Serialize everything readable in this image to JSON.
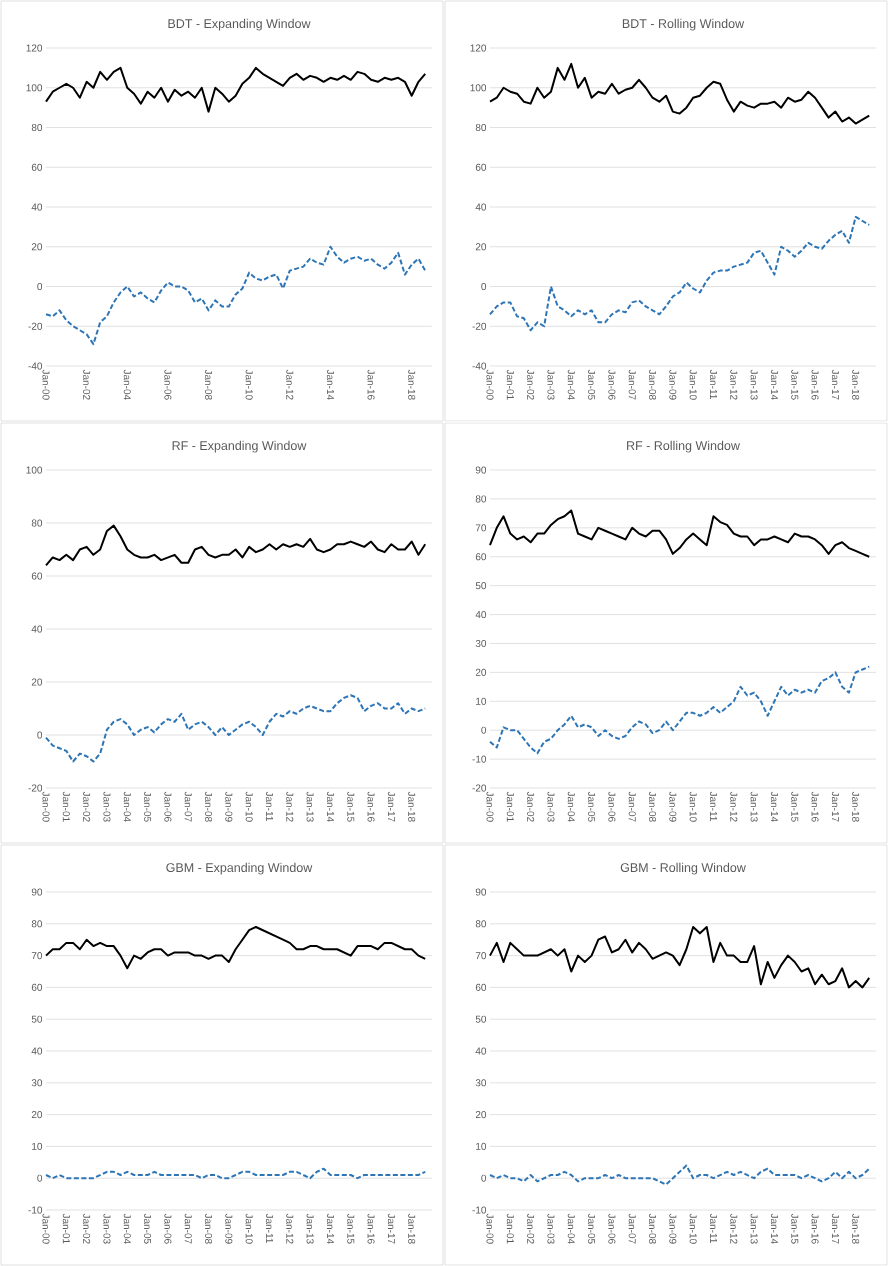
{
  "chart_data": [
    {
      "type": "line",
      "title": "BDT - Expanding Window",
      "grid": "y",
      "x": [
        "2000-01",
        "2000-05",
        "2000-09",
        "2001-01",
        "2001-05",
        "2001-09",
        "2002-01",
        "2002-05",
        "2002-09",
        "2003-01",
        "2003-05",
        "2003-09",
        "2004-01",
        "2004-05",
        "2004-09",
        "2005-01",
        "2005-05",
        "2005-09",
        "2006-01",
        "2006-05",
        "2006-09",
        "2007-01",
        "2007-05",
        "2007-09",
        "2008-01",
        "2008-05",
        "2008-09",
        "2009-01",
        "2009-05",
        "2009-09",
        "2010-01",
        "2010-05",
        "2010-09",
        "2011-01",
        "2011-05",
        "2011-09",
        "2012-01",
        "2012-05",
        "2012-09",
        "2013-01",
        "2013-05",
        "2013-09",
        "2014-01",
        "2014-05",
        "2014-09",
        "2015-01",
        "2015-05",
        "2015-09",
        "2016-01",
        "2016-05",
        "2016-09",
        "2017-01",
        "2017-05",
        "2017-09",
        "2018-01",
        "2018-05",
        "2018-09"
      ],
      "xlim": [
        "2000-01",
        "2019-01"
      ],
      "xticks": [
        {
          "value": "2000-01",
          "label": "Jan-00"
        },
        {
          "value": "2002-01",
          "label": "Jan-02"
        },
        {
          "value": "2004-01",
          "label": "Jan-04"
        },
        {
          "value": "2006-01",
          "label": "Jan-06"
        },
        {
          "value": "2008-01",
          "label": "Jan-08"
        },
        {
          "value": "2010-01",
          "label": "Jan-10"
        },
        {
          "value": "2012-01",
          "label": "Jan-12"
        },
        {
          "value": "2014-01",
          "label": "Jan-14"
        },
        {
          "value": "2016-01",
          "label": "Jan-16"
        },
        {
          "value": "2018-01",
          "label": "Jan-18"
        }
      ],
      "ylim": [
        -40,
        120
      ],
      "yticks": [
        -40,
        -20,
        0,
        20,
        40,
        60,
        80,
        100,
        120
      ],
      "series": [
        {
          "color": "#000000",
          "line_style": "solid",
          "values": [
            93,
            98,
            100,
            102,
            100,
            95,
            103,
            100,
            108,
            104,
            108,
            110,
            100,
            97,
            92,
            98,
            95,
            100,
            93,
            99,
            96,
            98,
            95,
            100,
            88,
            100,
            97,
            93,
            96,
            102,
            105,
            110,
            107,
            105,
            103,
            101,
            105,
            107,
            104,
            106,
            105,
            103,
            105,
            104,
            106,
            104,
            108,
            107,
            104,
            103,
            105,
            104,
            105,
            103,
            96,
            103,
            107
          ]
        },
        {
          "color": "#2e75b6",
          "line_style": "dashed",
          "values": [
            -14,
            -15,
            -12,
            -17,
            -20,
            -22,
            -24,
            -29,
            -18,
            -15,
            -8,
            -3,
            0,
            -5,
            -3,
            -6,
            -8,
            -2,
            2,
            0,
            0,
            -2,
            -8,
            -6,
            -12,
            -7,
            -10,
            -10,
            -4,
            -1,
            7,
            4,
            3,
            5,
            6,
            -1,
            8,
            9,
            10,
            14,
            12,
            11,
            20,
            15,
            12,
            14,
            15,
            13,
            14,
            11,
            9,
            12,
            17,
            6,
            11,
            14,
            8
          ]
        }
      ]
    },
    {
      "type": "line",
      "title": "BDT - Rolling Window",
      "grid": "y",
      "x": [
        "2000-01",
        "2000-05",
        "2000-09",
        "2001-01",
        "2001-05",
        "2001-09",
        "2002-01",
        "2002-05",
        "2002-09",
        "2003-01",
        "2003-05",
        "2003-09",
        "2004-01",
        "2004-05",
        "2004-09",
        "2005-01",
        "2005-05",
        "2005-09",
        "2006-01",
        "2006-05",
        "2006-09",
        "2007-01",
        "2007-05",
        "2007-09",
        "2008-01",
        "2008-05",
        "2008-09",
        "2009-01",
        "2009-05",
        "2009-09",
        "2010-01",
        "2010-05",
        "2010-09",
        "2011-01",
        "2011-05",
        "2011-09",
        "2012-01",
        "2012-05",
        "2012-09",
        "2013-01",
        "2013-05",
        "2013-09",
        "2014-01",
        "2014-05",
        "2014-09",
        "2015-01",
        "2015-05",
        "2015-09",
        "2016-01",
        "2016-05",
        "2016-09",
        "2017-01",
        "2017-05",
        "2017-09",
        "2018-01",
        "2018-05",
        "2018-09"
      ],
      "xlim": [
        "2000-01",
        "2019-01"
      ],
      "xticks": [
        {
          "value": "2000-01",
          "label": "Jan-00"
        },
        {
          "value": "2001-01",
          "label": "Jan-01"
        },
        {
          "value": "2002-01",
          "label": "Jan-02"
        },
        {
          "value": "2003-01",
          "label": "Jan-03"
        },
        {
          "value": "2004-01",
          "label": "Jan-04"
        },
        {
          "value": "2005-01",
          "label": "Jan-05"
        },
        {
          "value": "2006-01",
          "label": "Jan-06"
        },
        {
          "value": "2007-01",
          "label": "Jan-07"
        },
        {
          "value": "2008-01",
          "label": "Jan-08"
        },
        {
          "value": "2009-01",
          "label": "Jan-09"
        },
        {
          "value": "2010-01",
          "label": "Jan-10"
        },
        {
          "value": "2011-01",
          "label": "Jan-11"
        },
        {
          "value": "2012-01",
          "label": "Jan-12"
        },
        {
          "value": "2013-01",
          "label": "Jan-13"
        },
        {
          "value": "2014-01",
          "label": "Jan-14"
        },
        {
          "value": "2015-01",
          "label": "Jan-15"
        },
        {
          "value": "2016-01",
          "label": "Jan-16"
        },
        {
          "value": "2017-01",
          "label": "Jan-17"
        },
        {
          "value": "2018-01",
          "label": "Jan-18"
        }
      ],
      "ylim": [
        -40,
        120
      ],
      "yticks": [
        -40,
        -20,
        0,
        20,
        40,
        60,
        80,
        100,
        120
      ],
      "series": [
        {
          "color": "#000000",
          "line_style": "solid",
          "values": [
            93,
            95,
            100,
            98,
            97,
            93,
            92,
            100,
            95,
            98,
            110,
            104,
            112,
            100,
            105,
            95,
            98,
            97,
            102,
            97,
            99,
            100,
            104,
            100,
            95,
            93,
            96,
            88,
            87,
            90,
            95,
            96,
            100,
            103,
            102,
            94,
            88,
            93,
            91,
            90,
            92,
            92,
            93,
            90,
            95,
            93,
            94,
            98,
            95,
            90,
            85,
            88,
            83,
            85,
            82,
            84,
            86
          ]
        },
        {
          "color": "#2e75b6",
          "line_style": "dashed",
          "values": [
            -14,
            -10,
            -8,
            -8,
            -15,
            -16,
            -22,
            -18,
            -20,
            0,
            -10,
            -12,
            -15,
            -12,
            -14,
            -12,
            -18,
            -18,
            -14,
            -12,
            -13,
            -8,
            -7,
            -10,
            -12,
            -14,
            -10,
            -5,
            -3,
            2,
            -1,
            -3,
            3,
            7,
            8,
            8,
            10,
            11,
            12,
            17,
            18,
            12,
            6,
            20,
            18,
            15,
            18,
            22,
            20,
            19,
            23,
            26,
            28,
            22,
            35,
            33,
            31
          ]
        }
      ]
    },
    {
      "type": "line",
      "title": "RF - Expanding Window",
      "grid": "y",
      "x": [
        "2000-01",
        "2000-05",
        "2000-09",
        "2001-01",
        "2001-05",
        "2001-09",
        "2002-01",
        "2002-05",
        "2002-09",
        "2003-01",
        "2003-05",
        "2003-09",
        "2004-01",
        "2004-05",
        "2004-09",
        "2005-01",
        "2005-05",
        "2005-09",
        "2006-01",
        "2006-05",
        "2006-09",
        "2007-01",
        "2007-05",
        "2007-09",
        "2008-01",
        "2008-05",
        "2008-09",
        "2009-01",
        "2009-05",
        "2009-09",
        "2010-01",
        "2010-05",
        "2010-09",
        "2011-01",
        "2011-05",
        "2011-09",
        "2012-01",
        "2012-05",
        "2012-09",
        "2013-01",
        "2013-05",
        "2013-09",
        "2014-01",
        "2014-05",
        "2014-09",
        "2015-01",
        "2015-05",
        "2015-09",
        "2016-01",
        "2016-05",
        "2016-09",
        "2017-01",
        "2017-05",
        "2017-09",
        "2018-01",
        "2018-05",
        "2018-09"
      ],
      "xlim": [
        "2000-01",
        "2019-01"
      ],
      "xticks": [
        {
          "value": "2000-01",
          "label": "Jan-00"
        },
        {
          "value": "2001-01",
          "label": "Jan-01"
        },
        {
          "value": "2002-01",
          "label": "Jan-02"
        },
        {
          "value": "2003-01",
          "label": "Jan-03"
        },
        {
          "value": "2004-01",
          "label": "Jan-04"
        },
        {
          "value": "2005-01",
          "label": "Jan-05"
        },
        {
          "value": "2006-01",
          "label": "Jan-06"
        },
        {
          "value": "2007-01",
          "label": "Jan-07"
        },
        {
          "value": "2008-01",
          "label": "Jan-08"
        },
        {
          "value": "2009-01",
          "label": "Jan-09"
        },
        {
          "value": "2010-01",
          "label": "Jan-10"
        },
        {
          "value": "2011-01",
          "label": "Jan-11"
        },
        {
          "value": "2012-01",
          "label": "Jan-12"
        },
        {
          "value": "2013-01",
          "label": "Jan-13"
        },
        {
          "value": "2014-01",
          "label": "Jan-14"
        },
        {
          "value": "2015-01",
          "label": "Jan-15"
        },
        {
          "value": "2016-01",
          "label": "Jan-16"
        },
        {
          "value": "2017-01",
          "label": "Jan-17"
        },
        {
          "value": "2018-01",
          "label": "Jan-18"
        }
      ],
      "ylim": [
        -20,
        100
      ],
      "yticks": [
        -20,
        0,
        20,
        40,
        60,
        80,
        100
      ],
      "series": [
        {
          "color": "#000000",
          "line_style": "solid",
          "values": [
            64,
            67,
            66,
            68,
            66,
            70,
            71,
            68,
            70,
            77,
            79,
            75,
            70,
            68,
            67,
            67,
            68,
            66,
            67,
            68,
            65,
            65,
            70,
            71,
            68,
            67,
            68,
            68,
            70,
            67,
            71,
            69,
            70,
            72,
            70,
            72,
            71,
            72,
            71,
            74,
            70,
            69,
            70,
            72,
            72,
            73,
            72,
            71,
            73,
            70,
            69,
            72,
            70,
            70,
            73,
            68,
            72
          ]
        },
        {
          "color": "#2e75b6",
          "line_style": "dashed",
          "values": [
            -1,
            -4,
            -5,
            -6,
            -10,
            -7,
            -8,
            -10,
            -7,
            2,
            5,
            6,
            4,
            0,
            2,
            3,
            1,
            4,
            6,
            5,
            8,
            2,
            4,
            5,
            3,
            0,
            3,
            0,
            2,
            4,
            5,
            3,
            0,
            5,
            8,
            7,
            9,
            8,
            10,
            11,
            10,
            9,
            9,
            12,
            14,
            15,
            14,
            9,
            11,
            12,
            10,
            10,
            12,
            8,
            10,
            9,
            10
          ]
        }
      ]
    },
    {
      "type": "line",
      "title": "RF - Rolling Window",
      "grid": "y",
      "x": [
        "2000-01",
        "2000-05",
        "2000-09",
        "2001-01",
        "2001-05",
        "2001-09",
        "2002-01",
        "2002-05",
        "2002-09",
        "2003-01",
        "2003-05",
        "2003-09",
        "2004-01",
        "2004-05",
        "2004-09",
        "2005-01",
        "2005-05",
        "2005-09",
        "2006-01",
        "2006-05",
        "2006-09",
        "2007-01",
        "2007-05",
        "2007-09",
        "2008-01",
        "2008-05",
        "2008-09",
        "2009-01",
        "2009-05",
        "2009-09",
        "2010-01",
        "2010-05",
        "2010-09",
        "2011-01",
        "2011-05",
        "2011-09",
        "2012-01",
        "2012-05",
        "2012-09",
        "2013-01",
        "2013-05",
        "2013-09",
        "2014-01",
        "2014-05",
        "2014-09",
        "2015-01",
        "2015-05",
        "2015-09",
        "2016-01",
        "2016-05",
        "2016-09",
        "2017-01",
        "2017-05",
        "2017-09",
        "2018-01",
        "2018-05",
        "2018-09"
      ],
      "xlim": [
        "2000-01",
        "2019-01"
      ],
      "xticks": [
        {
          "value": "2000-01",
          "label": "Jan-00"
        },
        {
          "value": "2001-01",
          "label": "Jan-01"
        },
        {
          "value": "2002-01",
          "label": "Jan-02"
        },
        {
          "value": "2003-01",
          "label": "Jan-03"
        },
        {
          "value": "2004-01",
          "label": "Jan-04"
        },
        {
          "value": "2005-01",
          "label": "Jan-05"
        },
        {
          "value": "2006-01",
          "label": "Jan-06"
        },
        {
          "value": "2007-01",
          "label": "Jan-07"
        },
        {
          "value": "2008-01",
          "label": "Jan-08"
        },
        {
          "value": "2009-01",
          "label": "Jan-09"
        },
        {
          "value": "2010-01",
          "label": "Jan-10"
        },
        {
          "value": "2011-01",
          "label": "Jan-11"
        },
        {
          "value": "2012-01",
          "label": "Jan-12"
        },
        {
          "value": "2013-01",
          "label": "Jan-13"
        },
        {
          "value": "2014-01",
          "label": "Jan-14"
        },
        {
          "value": "2015-01",
          "label": "Jan-15"
        },
        {
          "value": "2016-01",
          "label": "Jan-16"
        },
        {
          "value": "2017-01",
          "label": "Jan-17"
        },
        {
          "value": "2018-01",
          "label": "Jan-18"
        }
      ],
      "ylim": [
        -20,
        90
      ],
      "yticks": [
        -20,
        -10,
        0,
        10,
        20,
        30,
        40,
        50,
        60,
        70,
        80,
        90
      ],
      "series": [
        {
          "color": "#000000",
          "line_style": "solid",
          "values": [
            64,
            70,
            74,
            68,
            66,
            67,
            65,
            68,
            68,
            71,
            73,
            74,
            76,
            68,
            67,
            66,
            70,
            69,
            68,
            67,
            66,
            70,
            68,
            67,
            69,
            69,
            66,
            61,
            63,
            66,
            68,
            66,
            64,
            74,
            72,
            71,
            68,
            67,
            67,
            64,
            66,
            66,
            67,
            66,
            65,
            68,
            67,
            67,
            66,
            64,
            61,
            64,
            65,
            63,
            62,
            61,
            60
          ]
        },
        {
          "color": "#2e75b6",
          "line_style": "dashed",
          "values": [
            -4,
            -6,
            1,
            0,
            0,
            -3,
            -6,
            -8,
            -4,
            -3,
            0,
            2,
            5,
            1,
            2,
            1,
            -2,
            0,
            -2,
            -3,
            -2,
            1,
            3,
            2,
            -1,
            0,
            3,
            0,
            3,
            6,
            6,
            5,
            6,
            8,
            6,
            8,
            10,
            15,
            12,
            13,
            10,
            5,
            10,
            15,
            12,
            14,
            13,
            14,
            13,
            17,
            18,
            20,
            15,
            13,
            20,
            21,
            22
          ]
        }
      ]
    },
    {
      "type": "line",
      "title": "GBM - Expanding Window",
      "grid": "y",
      "x": [
        "2000-01",
        "2000-05",
        "2000-09",
        "2001-01",
        "2001-05",
        "2001-09",
        "2002-01",
        "2002-05",
        "2002-09",
        "2003-01",
        "2003-05",
        "2003-09",
        "2004-01",
        "2004-05",
        "2004-09",
        "2005-01",
        "2005-05",
        "2005-09",
        "2006-01",
        "2006-05",
        "2006-09",
        "2007-01",
        "2007-05",
        "2007-09",
        "2008-01",
        "2008-05",
        "2008-09",
        "2009-01",
        "2009-05",
        "2009-09",
        "2010-01",
        "2010-05",
        "2010-09",
        "2011-01",
        "2011-05",
        "2011-09",
        "2012-01",
        "2012-05",
        "2012-09",
        "2013-01",
        "2013-05",
        "2013-09",
        "2014-01",
        "2014-05",
        "2014-09",
        "2015-01",
        "2015-05",
        "2015-09",
        "2016-01",
        "2016-05",
        "2016-09",
        "2017-01",
        "2017-05",
        "2017-09",
        "2018-01",
        "2018-05",
        "2018-09"
      ],
      "xlim": [
        "2000-01",
        "2019-01"
      ],
      "xticks": [
        {
          "value": "2000-01",
          "label": "Jan-00"
        },
        {
          "value": "2001-01",
          "label": "Jan-01"
        },
        {
          "value": "2002-01",
          "label": "Jan-02"
        },
        {
          "value": "2003-01",
          "label": "Jan-03"
        },
        {
          "value": "2004-01",
          "label": "Jan-04"
        },
        {
          "value": "2005-01",
          "label": "Jan-05"
        },
        {
          "value": "2006-01",
          "label": "Jan-06"
        },
        {
          "value": "2007-01",
          "label": "Jan-07"
        },
        {
          "value": "2008-01",
          "label": "Jan-08"
        },
        {
          "value": "2009-01",
          "label": "Jan-09"
        },
        {
          "value": "2010-01",
          "label": "Jan-10"
        },
        {
          "value": "2011-01",
          "label": "Jan-11"
        },
        {
          "value": "2012-01",
          "label": "Jan-12"
        },
        {
          "value": "2013-01",
          "label": "Jan-13"
        },
        {
          "value": "2014-01",
          "label": "Jan-14"
        },
        {
          "value": "2015-01",
          "label": "Jan-15"
        },
        {
          "value": "2016-01",
          "label": "Jan-16"
        },
        {
          "value": "2017-01",
          "label": "Jan-17"
        },
        {
          "value": "2018-01",
          "label": "Jan-18"
        }
      ],
      "ylim": [
        -10,
        90
      ],
      "yticks": [
        -10,
        0,
        10,
        20,
        30,
        40,
        50,
        60,
        70,
        80,
        90
      ],
      "series": [
        {
          "color": "#000000",
          "line_style": "solid",
          "values": [
            70,
            72,
            72,
            74,
            74,
            72,
            75,
            73,
            74,
            73,
            73,
            70,
            66,
            70,
            69,
            71,
            72,
            72,
            70,
            71,
            71,
            71,
            70,
            70,
            69,
            70,
            70,
            68,
            72,
            75,
            78,
            79,
            78,
            77,
            76,
            75,
            74,
            72,
            72,
            73,
            73,
            72,
            72,
            72,
            71,
            70,
            73,
            73,
            73,
            72,
            74,
            74,
            73,
            72,
            72,
            70,
            69
          ]
        },
        {
          "color": "#2e75b6",
          "line_style": "dashed",
          "values": [
            1,
            0,
            1,
            0,
            0,
            0,
            0,
            0,
            1,
            2,
            2,
            1,
            2,
            1,
            1,
            1,
            2,
            1,
            1,
            1,
            1,
            1,
            1,
            0,
            1,
            1,
            0,
            0,
            1,
            2,
            2,
            1,
            1,
            1,
            1,
            1,
            2,
            2,
            1,
            0,
            2,
            3,
            1,
            1,
            1,
            1,
            0,
            1,
            1,
            1,
            1,
            1,
            1,
            1,
            1,
            1,
            2
          ]
        }
      ]
    },
    {
      "type": "line",
      "title": "GBM - Rolling Window",
      "grid": "y",
      "x": [
        "2000-01",
        "2000-05",
        "2000-09",
        "2001-01",
        "2001-05",
        "2001-09",
        "2002-01",
        "2002-05",
        "2002-09",
        "2003-01",
        "2003-05",
        "2003-09",
        "2004-01",
        "2004-05",
        "2004-09",
        "2005-01",
        "2005-05",
        "2005-09",
        "2006-01",
        "2006-05",
        "2006-09",
        "2007-01",
        "2007-05",
        "2007-09",
        "2008-01",
        "2008-05",
        "2008-09",
        "2009-01",
        "2009-05",
        "2009-09",
        "2010-01",
        "2010-05",
        "2010-09",
        "2011-01",
        "2011-05",
        "2011-09",
        "2012-01",
        "2012-05",
        "2012-09",
        "2013-01",
        "2013-05",
        "2013-09",
        "2014-01",
        "2014-05",
        "2014-09",
        "2015-01",
        "2015-05",
        "2015-09",
        "2016-01",
        "2016-05",
        "2016-09",
        "2017-01",
        "2017-05",
        "2017-09",
        "2018-01",
        "2018-05",
        "2018-09"
      ],
      "xlim": [
        "2000-01",
        "2019-01"
      ],
      "xticks": [
        {
          "value": "2000-01",
          "label": "Jan-00"
        },
        {
          "value": "2001-01",
          "label": "Jan-01"
        },
        {
          "value": "2002-01",
          "label": "Jan-02"
        },
        {
          "value": "2003-01",
          "label": "Jan-03"
        },
        {
          "value": "2004-01",
          "label": "Jan-04"
        },
        {
          "value": "2005-01",
          "label": "Jan-05"
        },
        {
          "value": "2006-01",
          "label": "Jan-06"
        },
        {
          "value": "2007-01",
          "label": "Jan-07"
        },
        {
          "value": "2008-01",
          "label": "Jan-08"
        },
        {
          "value": "2009-01",
          "label": "Jan-09"
        },
        {
          "value": "2010-01",
          "label": "Jan-10"
        },
        {
          "value": "2011-01",
          "label": "Jan-11"
        },
        {
          "value": "2012-01",
          "label": "Jan-12"
        },
        {
          "value": "2013-01",
          "label": "Jan-13"
        },
        {
          "value": "2014-01",
          "label": "Jan-14"
        },
        {
          "value": "2015-01",
          "label": "Jan-15"
        },
        {
          "value": "2016-01",
          "label": "Jan-16"
        },
        {
          "value": "2017-01",
          "label": "Jan-17"
        },
        {
          "value": "2018-01",
          "label": "Jan-18"
        }
      ],
      "ylim": [
        -10,
        90
      ],
      "yticks": [
        -10,
        0,
        10,
        20,
        30,
        40,
        50,
        60,
        70,
        80,
        90
      ],
      "series": [
        {
          "color": "#000000",
          "line_style": "solid",
          "values": [
            70,
            74,
            68,
            74,
            72,
            70,
            70,
            70,
            71,
            72,
            70,
            72,
            65,
            70,
            68,
            70,
            75,
            76,
            71,
            72,
            75,
            71,
            74,
            72,
            69,
            70,
            71,
            70,
            67,
            72,
            79,
            77,
            79,
            68,
            74,
            70,
            70,
            68,
            68,
            73,
            61,
            68,
            63,
            67,
            70,
            68,
            65,
            66,
            61,
            64,
            61,
            62,
            66,
            60,
            62,
            60,
            63
          ]
        },
        {
          "color": "#2e75b6",
          "line_style": "dashed",
          "values": [
            1,
            0,
            1,
            0,
            0,
            -1,
            1,
            -1,
            0,
            1,
            1,
            2,
            1,
            -1,
            0,
            0,
            0,
            1,
            0,
            1,
            0,
            0,
            0,
            0,
            0,
            -1,
            -2,
            0,
            2,
            4,
            0,
            1,
            1,
            0,
            1,
            2,
            1,
            2,
            1,
            0,
            2,
            3,
            1,
            1,
            1,
            1,
            0,
            1,
            0,
            -1,
            0,
            2,
            0,
            2,
            0,
            1,
            3
          ]
        }
      ]
    }
  ]
}
